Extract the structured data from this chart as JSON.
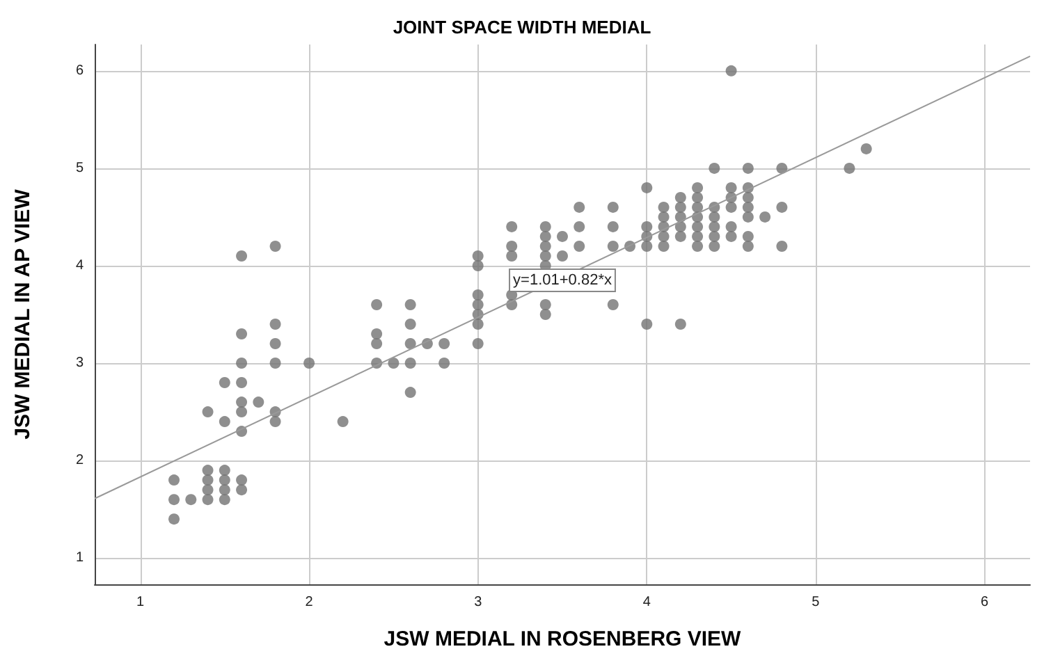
{
  "chart_data": {
    "type": "scatter",
    "title": "JOINT SPACE WIDTH MEDIAL",
    "xlabel": "JSW MEDIAL IN ROSENBERG VIEW",
    "ylabel": "JSW MEDIAL IN AP VIEW",
    "xlim": [
      0.73,
      6.27
    ],
    "ylim": [
      0.73,
      6.27
    ],
    "xticks": [
      1,
      2,
      3,
      4,
      5,
      6
    ],
    "yticks": [
      1,
      2,
      3,
      4,
      5,
      6
    ],
    "grid": true,
    "marker": "circle",
    "series": [
      {
        "color": "#737373",
        "x": [
          1.2,
          1.2,
          1.2,
          1.3,
          1.4,
          1.4,
          1.4,
          1.4,
          1.4,
          1.5,
          1.5,
          1.5,
          1.5,
          1.5,
          1.5,
          1.6,
          1.6,
          1.6,
          1.6,
          1.6,
          1.6,
          1.6,
          1.6,
          1.6,
          1.7,
          1.8,
          1.8,
          1.8,
          1.8,
          1.8,
          1.8,
          2.0,
          2.2,
          2.4,
          2.4,
          2.4,
          2.4,
          2.5,
          2.6,
          2.6,
          2.6,
          2.6,
          2.6,
          2.7,
          2.8,
          2.8,
          3.0,
          3.0,
          3.0,
          3.0,
          3.0,
          3.0,
          3.0,
          3.2,
          3.2,
          3.2,
          3.2,
          3.2,
          3.4,
          3.4,
          3.4,
          3.4,
          3.4,
          3.4,
          3.4,
          3.5,
          3.5,
          3.6,
          3.6,
          3.6,
          3.8,
          3.8,
          3.8,
          3.8,
          3.9,
          4.0,
          4.0,
          4.0,
          4.0,
          4.0,
          4.1,
          4.1,
          4.1,
          4.1,
          4.1,
          4.2,
          4.2,
          4.2,
          4.2,
          4.2,
          4.2,
          4.3,
          4.3,
          4.3,
          4.3,
          4.3,
          4.3,
          4.3,
          4.4,
          4.4,
          4.4,
          4.4,
          4.4,
          4.4,
          4.5,
          4.5,
          4.5,
          4.5,
          4.5,
          4.5,
          4.6,
          4.6,
          4.6,
          4.6,
          4.6,
          4.6,
          4.6,
          4.7,
          4.8,
          4.8,
          4.8,
          5.2,
          5.3
        ],
        "values": [
          1.8,
          1.6,
          1.4,
          1.6,
          2.5,
          1.9,
          1.8,
          1.7,
          1.6,
          2.8,
          2.4,
          1.9,
          1.8,
          1.7,
          1.6,
          4.1,
          3.3,
          3.0,
          2.8,
          2.6,
          2.5,
          2.3,
          1.8,
          1.7,
          2.6,
          4.2,
          3.4,
          3.2,
          3.0,
          2.5,
          2.4,
          3.0,
          2.4,
          3.6,
          3.3,
          3.2,
          3.0,
          3.0,
          3.6,
          3.4,
          3.2,
          3.0,
          2.7,
          3.2,
          3.2,
          3.0,
          4.1,
          4.0,
          3.7,
          3.6,
          3.5,
          3.4,
          3.2,
          4.4,
          4.2,
          4.1,
          3.7,
          3.6,
          4.4,
          4.3,
          4.2,
          4.1,
          4.0,
          3.6,
          3.5,
          4.3,
          4.1,
          4.6,
          4.4,
          4.2,
          4.6,
          4.4,
          4.2,
          3.6,
          4.2,
          4.8,
          4.4,
          4.3,
          4.2,
          3.4,
          4.6,
          4.5,
          4.4,
          4.3,
          4.2,
          4.7,
          4.6,
          4.5,
          4.4,
          4.3,
          3.4,
          4.8,
          4.7,
          4.6,
          4.5,
          4.4,
          4.3,
          4.2,
          5.0,
          4.6,
          4.5,
          4.4,
          4.3,
          4.2,
          6.0,
          4.8,
          4.7,
          4.6,
          4.4,
          4.3,
          5.0,
          4.8,
          4.7,
          4.6,
          4.5,
          4.3,
          4.2,
          4.5,
          5.0,
          4.6,
          4.2,
          5.0,
          5.2
        ]
      },
      {
        "type": "line",
        "marker": "none",
        "color": "#999999",
        "x": [
          0.73,
          6.27
        ],
        "values": [
          1.61,
          6.15
        ]
      }
    ],
    "annotations": [
      {
        "text": "y=1.01+0.82*x",
        "x": 3.5,
        "y": 3.85
      }
    ]
  }
}
